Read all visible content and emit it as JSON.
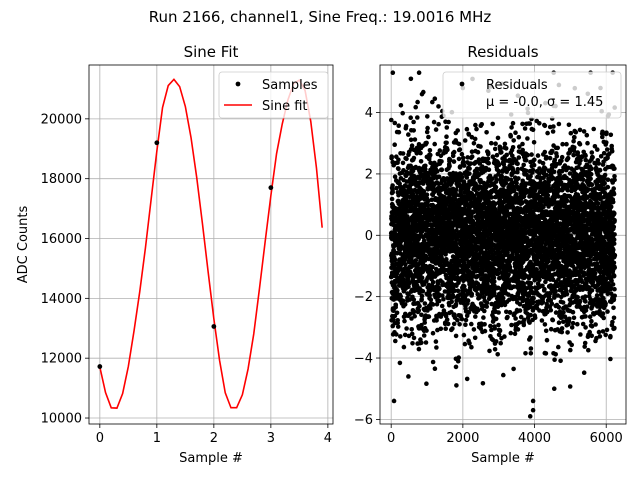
{
  "figure": {
    "suptitle": "Run 2166, channel1, Sine Freq.: 19.0016 MHz"
  },
  "chart_data": [
    {
      "type": "line",
      "title": "Sine Fit",
      "xlabel": "Sample #",
      "ylabel": "ADC Counts",
      "xlim": [
        -0.19,
        4.09
      ],
      "ylim": [
        9800,
        21800
      ],
      "xticks": [
        0,
        1,
        2,
        3,
        4
      ],
      "xtick_labels": [
        "0",
        "1",
        "2",
        "3",
        "4"
      ],
      "yticks": [
        10000,
        12000,
        14000,
        16000,
        18000,
        20000
      ],
      "ytick_labels": [
        "10000",
        "12000",
        "14000",
        "16000",
        "18000",
        "20000"
      ],
      "grid": true,
      "legend_position": "top-right",
      "series": [
        {
          "name": "Samples",
          "kind": "scatter",
          "color": "#000000",
          "x": [
            0,
            1,
            2,
            3
          ],
          "y": [
            11720,
            19200,
            13060,
            17700
          ]
        },
        {
          "name": "Sine fit",
          "kind": "line",
          "color": "#ff0000",
          "x": [
            0.0,
            0.1,
            0.2,
            0.3,
            0.4,
            0.5,
            0.6,
            0.7,
            0.8,
            0.9,
            1.0,
            1.1,
            1.2,
            1.3,
            1.4,
            1.5,
            1.6,
            1.7,
            1.8,
            1.9,
            2.0,
            2.1,
            2.2,
            2.3,
            2.4,
            2.5,
            2.6,
            2.7,
            2.8,
            2.9,
            3.0,
            3.1,
            3.2,
            3.3,
            3.4,
            3.5,
            3.6,
            3.7,
            3.8,
            3.9
          ],
          "y": [
            11704,
            10852,
            10341,
            10331,
            10817,
            11725,
            12916,
            14222,
            15689,
            17310,
            18924,
            20377,
            21113,
            21321,
            21079,
            20412,
            19369,
            18030,
            16495,
            14880,
            13316,
            11931,
            10842,
            10344,
            10345,
            10776,
            11637,
            12812,
            14325,
            15896,
            17431,
            18836,
            19832,
            20639,
            21178,
            21293,
            20950,
            19914,
            18354,
            16362
          ]
        }
      ]
    },
    {
      "type": "scatter",
      "title": "Residuals",
      "xlabel": "Sample #",
      "ylabel": "",
      "xlim": [
        -312,
        6552
      ],
      "ylim": [
        -6.15,
        5.55
      ],
      "xticks": [
        0,
        2000,
        4000,
        6000
      ],
      "xtick_labels": [
        "0",
        "2000",
        "4000",
        "6000"
      ],
      "yticks": [
        -6,
        -4,
        -2,
        0,
        2,
        4
      ],
      "ytick_labels": [
        "−6",
        "−4",
        "−2",
        "0",
        "2",
        "4"
      ],
      "grid": true,
      "legend_position": "top-right",
      "sample_count": 6240,
      "series": [
        {
          "name": "Residuals",
          "color": "#000000",
          "mean": -0.0,
          "std": 1.45,
          "x_range": [
            0,
            6240
          ],
          "y_range": [
            -5.9,
            5.3
          ]
        }
      ],
      "legend_lines": [
        "Residuals",
        "μ = -0.0, σ = 1.45"
      ],
      "outliers": [
        {
          "x": 80,
          "y": -5.4
        },
        {
          "x": 550,
          "y": 5.1
        },
        {
          "x": 860,
          "y": 4.6
        },
        {
          "x": 2000,
          "y": 4.8
        },
        {
          "x": 3880,
          "y": -5.9
        },
        {
          "x": 3960,
          "y": -5.7
        },
        {
          "x": 3960,
          "y": -5.4
        },
        {
          "x": 4550,
          "y": -5.0
        },
        {
          "x": 4680,
          "y": 4.9
        },
        {
          "x": 5840,
          "y": 4.8
        },
        {
          "x": 6180,
          "y": 5.3
        },
        {
          "x": 480,
          "y": -4.6
        },
        {
          "x": 1320,
          "y": 4.2
        }
      ]
    }
  ]
}
